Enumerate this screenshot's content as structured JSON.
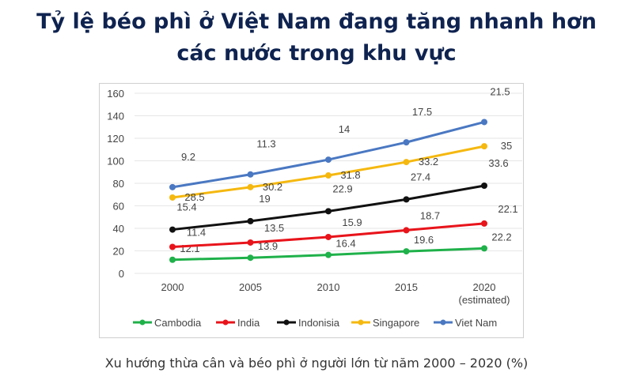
{
  "title_lines": [
    "Tỷ lệ béo phì ở Việt Nam đang tăng nhanh hơn",
    "các nước trong khu vực"
  ],
  "caption": "Xu hướng thừa cân và béo phì ở người lớn từ năm 2000 – 2020 (%)",
  "chart_data": {
    "type": "line",
    "stacked": true,
    "title": "Tỷ lệ béo phì ở Việt Nam đang tăng nhanh hơn các nước trong khu vực",
    "xlabel": "",
    "ylabel": "",
    "categories": [
      "2000",
      "2005",
      "2010",
      "2015",
      "2020"
    ],
    "category_sublabels": [
      "",
      "",
      "",
      "",
      "(estimated)"
    ],
    "ylim": [
      0,
      160
    ],
    "yticks": [
      0,
      20,
      40,
      60,
      80,
      100,
      120,
      140,
      160
    ],
    "grid": true,
    "legend": "bottom",
    "series": [
      {
        "name": "Cambodia",
        "color": "#1fb14a",
        "values": [
          12.1,
          13.9,
          16.4,
          19.6,
          22.2
        ]
      },
      {
        "name": "India",
        "color": "#e8141b",
        "values": [
          11.4,
          13.5,
          15.9,
          18.7,
          22.1
        ]
      },
      {
        "name": "Indonisia",
        "color": "#111111",
        "values": [
          15.4,
          19,
          22.9,
          27.4,
          33.6
        ]
      },
      {
        "name": "Singapore",
        "color": "#f5b80f",
        "values": [
          28.5,
          30.2,
          31.8,
          33.2,
          35
        ]
      },
      {
        "name": "Viet Nam",
        "color": "#4a78c2",
        "values": [
          9.2,
          11.3,
          14,
          17.5,
          21.5
        ]
      }
    ]
  }
}
